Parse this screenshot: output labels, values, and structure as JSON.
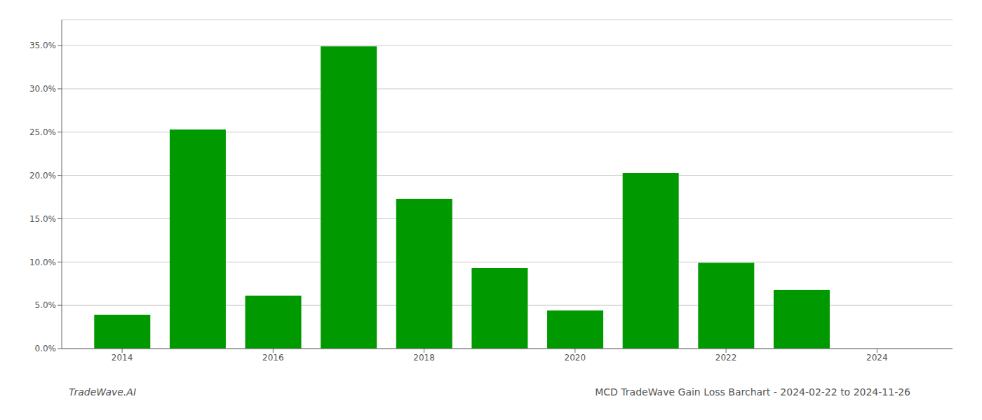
{
  "chart_data": {
    "type": "bar",
    "title": "MCD TradeWave Gain Loss Barchart - 2024-02-22 to 2024-11-26",
    "annotations": [
      "TradeWave.AI"
    ],
    "x": [
      2014,
      2015,
      2016,
      2017,
      2018,
      2019,
      2020,
      2021,
      2022,
      2023,
      2024
    ],
    "values": [
      0.039,
      0.253,
      0.061,
      0.349,
      0.173,
      0.093,
      0.044,
      0.203,
      0.099,
      0.068,
      0.0
    ],
    "color": "#009900",
    "xlim": [
      2013.2,
      2025.0
    ],
    "xticks": [
      2014,
      2016,
      2018,
      2020,
      2022,
      2024
    ],
    "ylim": [
      0.0,
      0.38
    ],
    "yticks": [
      {
        "value": 0.0,
        "label": "0.0%"
      },
      {
        "value": 0.05,
        "label": "5.0%"
      },
      {
        "value": 0.1,
        "label": "10.0%"
      },
      {
        "value": 0.15,
        "label": "15.0%"
      },
      {
        "value": 0.2,
        "label": "20.0%"
      },
      {
        "value": 0.25,
        "label": "25.0%"
      },
      {
        "value": 0.3,
        "label": "30.0%"
      },
      {
        "value": 0.35,
        "label": "35.0%"
      }
    ],
    "grid": true
  }
}
